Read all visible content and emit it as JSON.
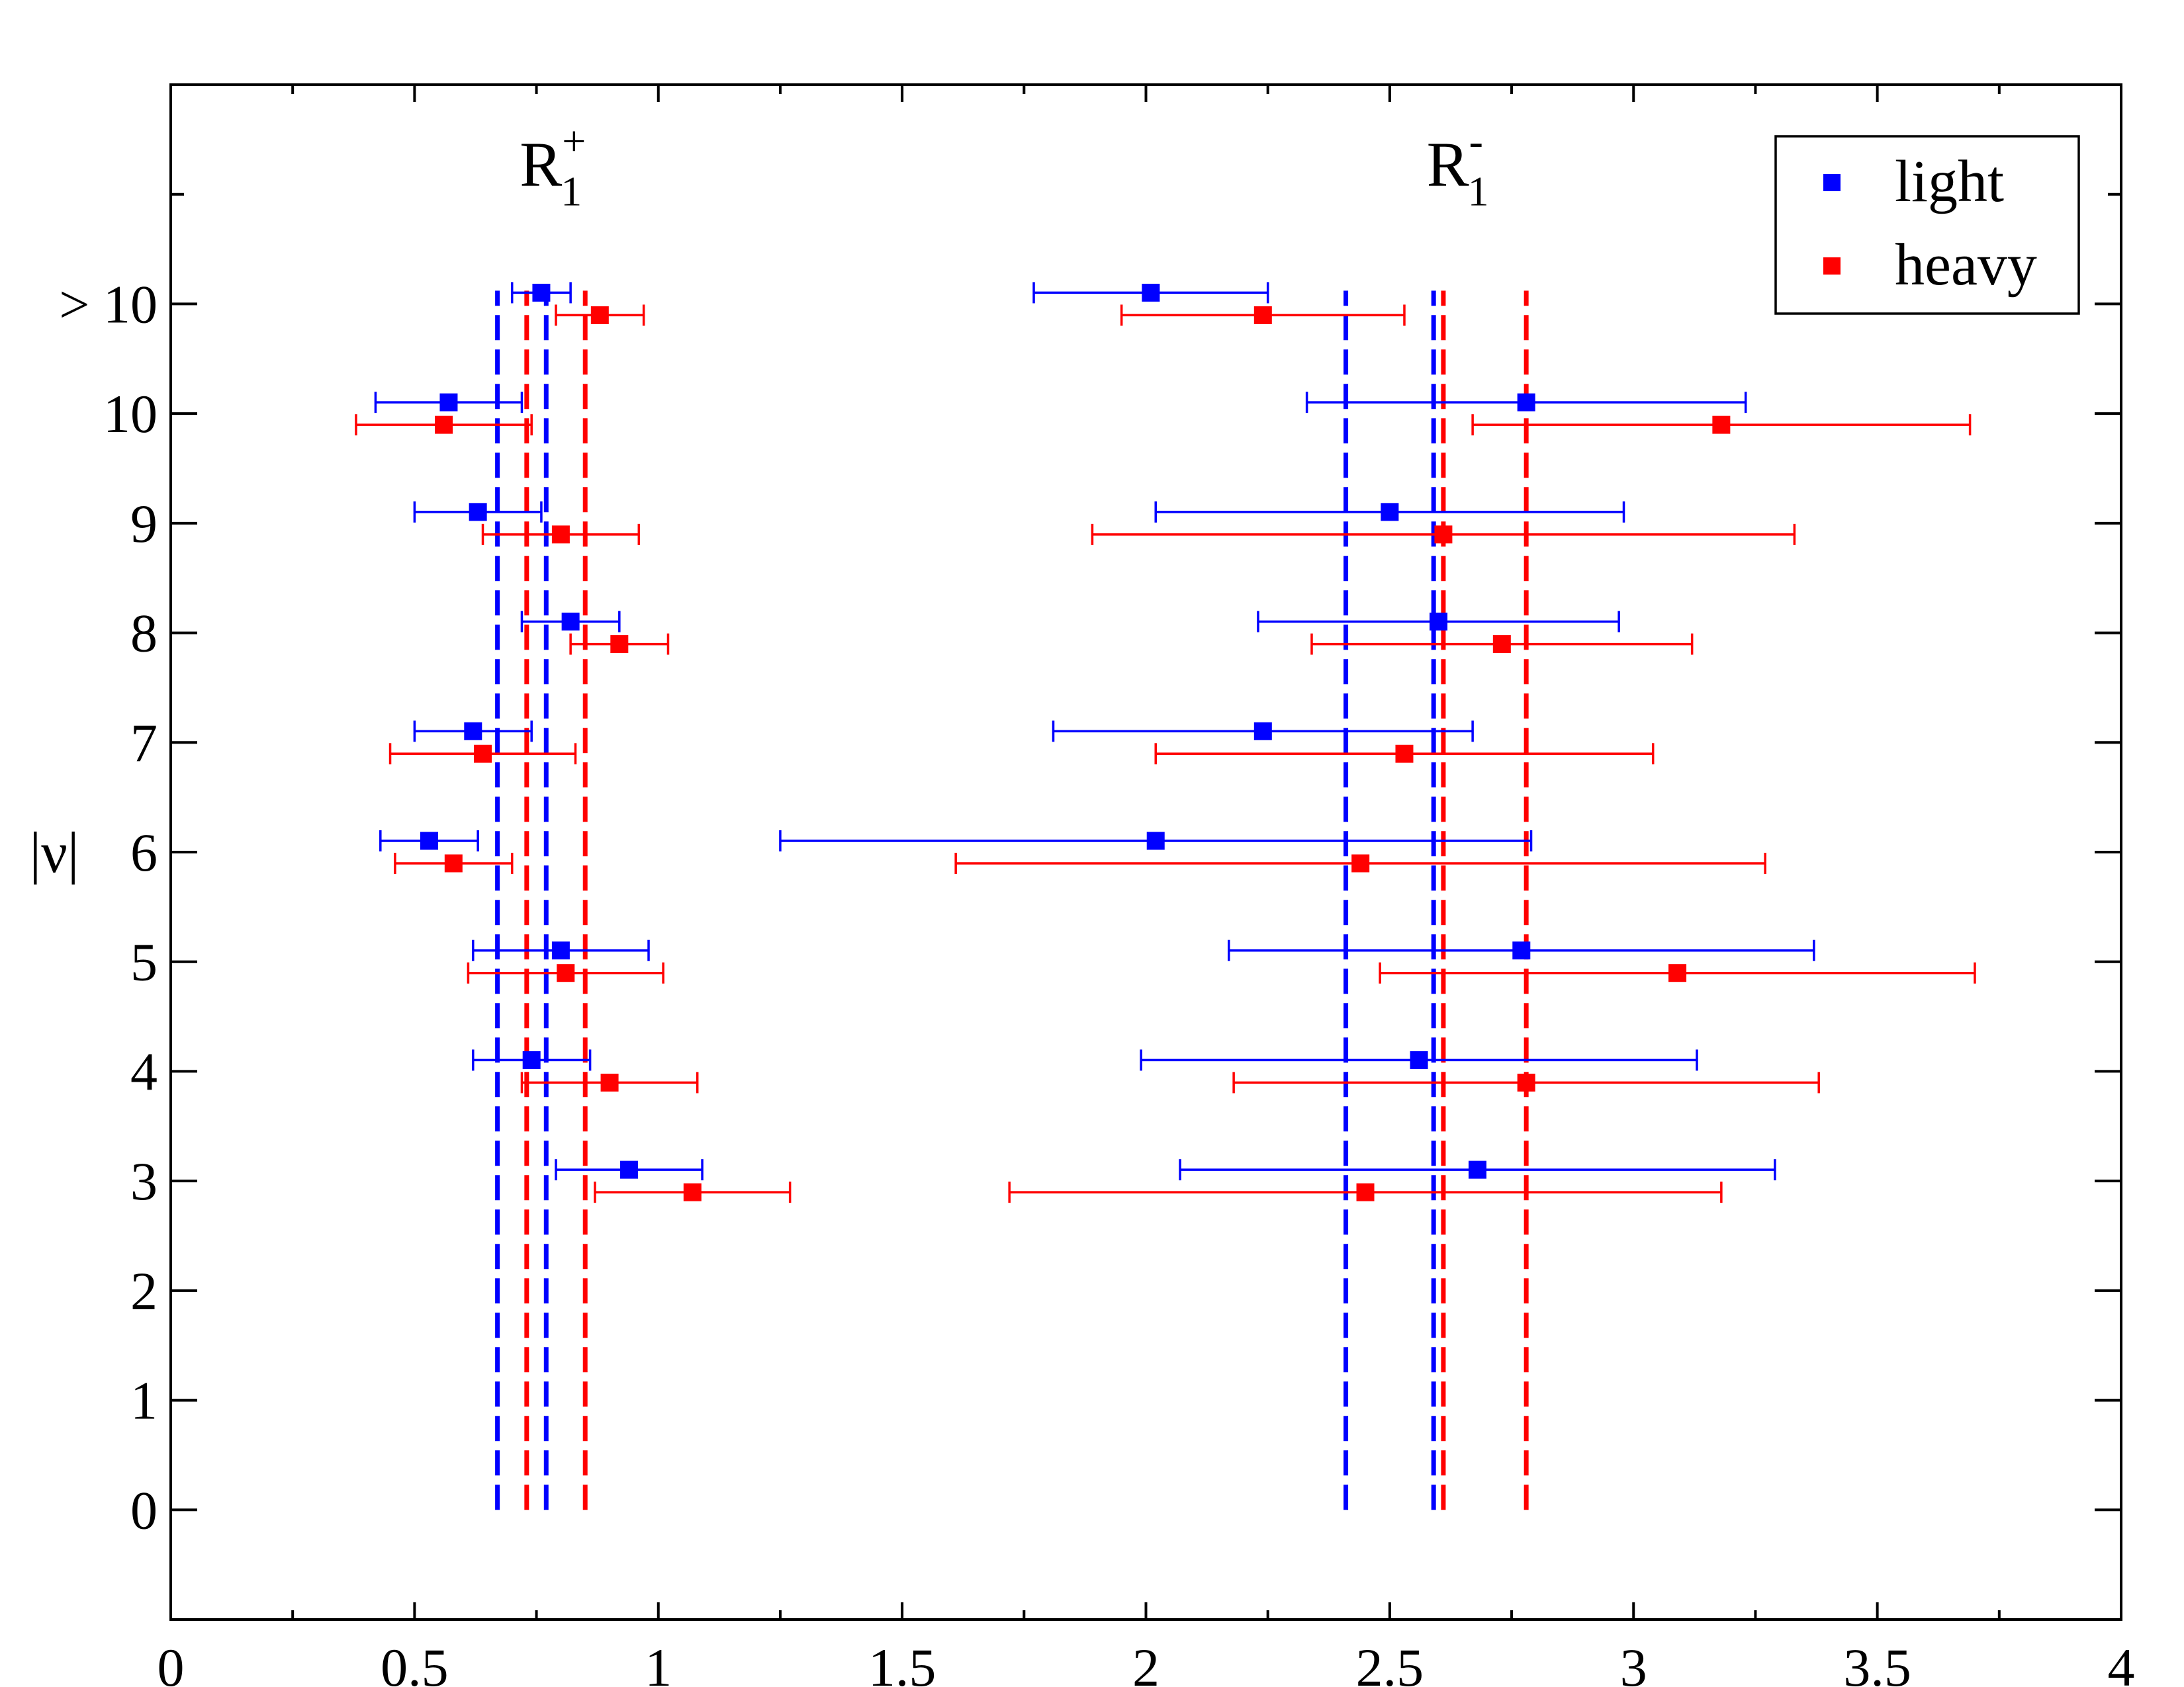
{
  "chart_data": {
    "type": "scatter",
    "xlim": [
      0,
      4
    ],
    "ylim": [
      -1,
      13
    ],
    "x_ticks": [
      0,
      0.5,
      1,
      1.5,
      2,
      2.5,
      3,
      3.5,
      4
    ],
    "x_tick_labels": [
      "0",
      "0.5",
      "1",
      "1.5",
      "2",
      "2.5",
      "3",
      "3.5",
      "4"
    ],
    "y_ticks": [
      0,
      1,
      2,
      3,
      4,
      5,
      6,
      7,
      8,
      9,
      10,
      11
    ],
    "y_tick_labels": [
      "0",
      "1",
      "2",
      "3",
      "4",
      "5",
      "6",
      "7",
      "8",
      "9",
      "10",
      "> 10"
    ],
    "y_minor_ticks": [
      12
    ],
    "ylabel": "|ν|",
    "xlabel": "",
    "annotations": [
      {
        "base": "R",
        "sub": "1",
        "sup": "+",
        "x": 0.77,
        "y": 12.2
      },
      {
        "base": "R",
        "sub": "1",
        "sup": "-",
        "x": 2.63,
        "y": 12.2
      }
    ],
    "legend": {
      "position": "top-right",
      "entries": [
        "light",
        "heavy"
      ]
    },
    "series": [
      {
        "name": "light",
        "color": "#0000ff",
        "points": [
          {
            "y": 11,
            "x": 0.76,
            "xerr": [
              0.7,
              0.82
            ]
          },
          {
            "y": 10,
            "x": 0.57,
            "xerr": [
              0.42,
              0.72
            ]
          },
          {
            "y": 9,
            "x": 0.63,
            "xerr": [
              0.5,
              0.76
            ]
          },
          {
            "y": 8,
            "x": 0.82,
            "xerr": [
              0.72,
              0.92
            ]
          },
          {
            "y": 7,
            "x": 0.62,
            "xerr": [
              0.5,
              0.74
            ]
          },
          {
            "y": 6,
            "x": 0.53,
            "xerr": [
              0.43,
              0.63
            ]
          },
          {
            "y": 5,
            "x": 0.8,
            "xerr": [
              0.62,
              0.98
            ]
          },
          {
            "y": 4,
            "x": 0.74,
            "xerr": [
              0.62,
              0.86
            ]
          },
          {
            "y": 3,
            "x": 0.94,
            "xerr": [
              0.79,
              1.09
            ]
          },
          {
            "y": 11,
            "x": 2.01,
            "xerr": [
              1.77,
              2.25
            ]
          },
          {
            "y": 10,
            "x": 2.78,
            "xerr": [
              2.33,
              3.23
            ]
          },
          {
            "y": 9,
            "x": 2.5,
            "xerr": [
              2.02,
              2.98
            ]
          },
          {
            "y": 8,
            "x": 2.6,
            "xerr": [
              2.23,
              2.97
            ]
          },
          {
            "y": 7,
            "x": 2.24,
            "xerr": [
              1.81,
              2.67
            ]
          },
          {
            "y": 6,
            "x": 2.02,
            "xerr": [
              1.25,
              2.79
            ]
          },
          {
            "y": 5,
            "x": 2.77,
            "xerr": [
              2.17,
              3.37
            ]
          },
          {
            "y": 4,
            "x": 2.56,
            "xerr": [
              1.99,
              3.13
            ]
          },
          {
            "y": 3,
            "x": 2.68,
            "xerr": [
              2.07,
              3.29
            ]
          }
        ],
        "vlines": [
          0.67,
          0.77,
          2.41,
          2.59
        ]
      },
      {
        "name": "heavy",
        "color": "#ff0000",
        "points": [
          {
            "y": 11,
            "x": 0.88,
            "xerr": [
              0.79,
              0.97
            ]
          },
          {
            "y": 10,
            "x": 0.56,
            "xerr": [
              0.38,
              0.74
            ]
          },
          {
            "y": 9,
            "x": 0.8,
            "xerr": [
              0.64,
              0.96
            ]
          },
          {
            "y": 8,
            "x": 0.92,
            "xerr": [
              0.82,
              1.02
            ]
          },
          {
            "y": 7,
            "x": 0.64,
            "xerr": [
              0.45,
              0.83
            ]
          },
          {
            "y": 6,
            "x": 0.58,
            "xerr": [
              0.46,
              0.7
            ]
          },
          {
            "y": 5,
            "x": 0.81,
            "xerr": [
              0.61,
              1.01
            ]
          },
          {
            "y": 4,
            "x": 0.9,
            "xerr": [
              0.72,
              1.08
            ]
          },
          {
            "y": 3,
            "x": 1.07,
            "xerr": [
              0.87,
              1.27
            ]
          },
          {
            "y": 11,
            "x": 2.24,
            "xerr": [
              1.95,
              2.53
            ]
          },
          {
            "y": 10,
            "x": 3.18,
            "xerr": [
              2.67,
              3.69
            ]
          },
          {
            "y": 9,
            "x": 2.61,
            "xerr": [
              1.89,
              3.33
            ]
          },
          {
            "y": 8,
            "x": 2.73,
            "xerr": [
              2.34,
              3.12
            ]
          },
          {
            "y": 7,
            "x": 2.53,
            "xerr": [
              2.02,
              3.04
            ]
          },
          {
            "y": 6,
            "x": 2.44,
            "xerr": [
              1.61,
              3.27
            ]
          },
          {
            "y": 5,
            "x": 3.09,
            "xerr": [
              2.48,
              3.7
            ]
          },
          {
            "y": 4,
            "x": 2.78,
            "xerr": [
              2.18,
              3.38
            ]
          },
          {
            "y": 3,
            "x": 2.45,
            "xerr": [
              1.72,
              3.18
            ]
          }
        ],
        "vlines": [
          0.73,
          0.85,
          2.61,
          2.78
        ]
      }
    ]
  }
}
